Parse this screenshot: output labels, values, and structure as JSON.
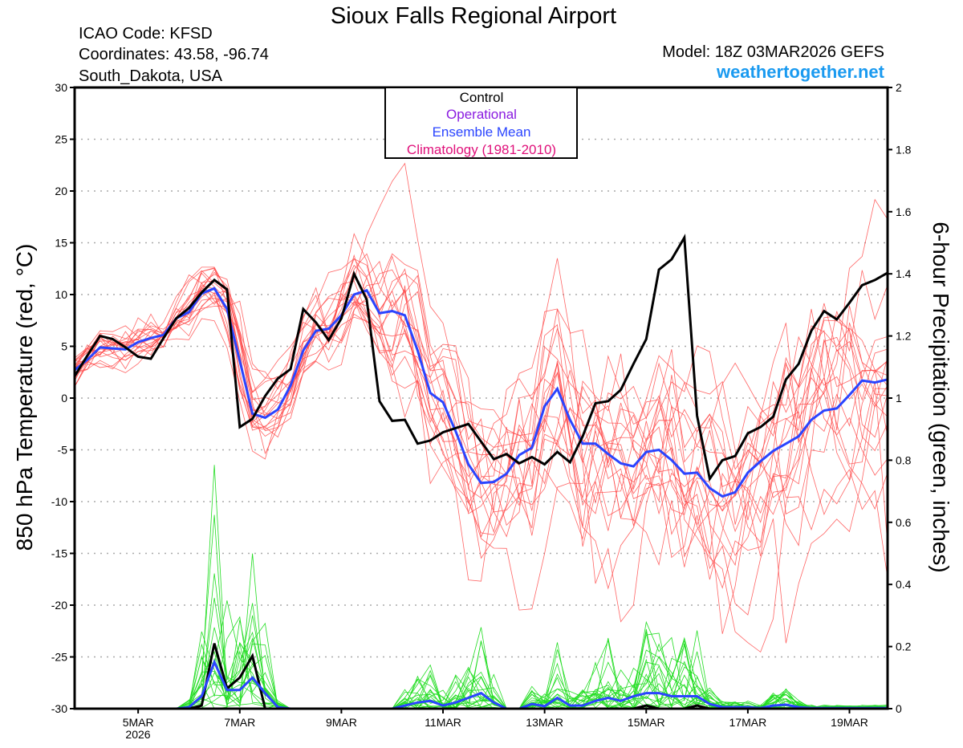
{
  "header": {
    "title": "Sioux Falls Regional Airport",
    "icao": "ICAO Code: KFSD",
    "coordinates": "Coordinates: 43.58, -96.74",
    "region": "South_Dakota, USA",
    "model": "Model: 18Z 03MAR2026 GEFS",
    "site": "weathertogether.net"
  },
  "legend": {
    "control": "Control",
    "operational": "Operational",
    "ensemble_mean": "Ensemble Mean",
    "climatology": "Climatology (1981-2010)"
  },
  "colors": {
    "control": "#000000",
    "operational": "#8a1be0",
    "ensemble_mean": "#2a44ff",
    "climatology": "#e0107a",
    "members_temp": "#ff4a4a",
    "members_precip": "#22dd22",
    "site": "#1a9af0"
  },
  "chart_data": {
    "type": "line",
    "title": "Sioux Falls Regional Airport",
    "ylabel": "850 hPa Temperature (red, °C)",
    "y2label": "6-hour Precipitation (green, inches)",
    "ylim": [
      -30,
      30
    ],
    "y2lim": [
      0,
      2
    ],
    "yticks": [
      "30",
      "25",
      "20",
      "15",
      "10",
      "5",
      "0",
      "-5",
      "-10",
      "-15",
      "-20",
      "-25",
      "-30"
    ],
    "y2ticks": [
      "2",
      "1.8",
      "1.6",
      "1.4",
      "1.2",
      "1",
      "0.8",
      "0.6",
      "0.4",
      "0.2",
      "0"
    ],
    "time_step_hours": 6,
    "start": "18Z 03MAR2026",
    "xticks": [
      {
        "label": "5MAR",
        "index": 5
      },
      {
        "label": "7MAR",
        "index": 13
      },
      {
        "label": "9MAR",
        "index": 21
      },
      {
        "label": "11MAR",
        "index": 29
      },
      {
        "label": "13MAR",
        "index": 37
      },
      {
        "label": "15MAR",
        "index": 45
      },
      {
        "label": "17MAR",
        "index": 53
      },
      {
        "label": "19MAR",
        "index": 61
      }
    ],
    "year_label": "2026",
    "control_temp": [
      2.1,
      4.1,
      6.0,
      5.7,
      4.9,
      4.0,
      3.8,
      5.8,
      7.7,
      8.7,
      10.2,
      11.4,
      10.5,
      -2.8,
      -2.0,
      0.2,
      1.9,
      2.8,
      8.6,
      7.3,
      5.6,
      7.7,
      12.0,
      9.5,
      -0.3,
      -2.2,
      -2.1,
      -4.4,
      -4.1,
      -3.3,
      -2.9,
      -2.5,
      -4.2,
      -5.9,
      -5.4,
      -6.3,
      -5.7,
      -6.4,
      -5.2,
      -6.2,
      -3.7,
      -0.5,
      -0.3,
      0.8,
      3.3,
      5.7,
      12.4,
      13.4,
      15.5,
      -1.7,
      -7.8,
      -6.0,
      -5.6,
      -3.4,
      -2.8,
      -1.8,
      1.8,
      3.3,
      6.5,
      8.4,
      7.6,
      9.2,
      10.9,
      11.4,
      12.1
    ],
    "mean_temp": [
      2.7,
      3.7,
      4.9,
      4.8,
      4.7,
      5.4,
      5.8,
      6.1,
      7.7,
      8.3,
      10.1,
      10.6,
      8.6,
      3.6,
      -1.5,
      -1.9,
      -1.1,
      1.2,
      4.6,
      6.5,
      6.7,
      8.0,
      10.0,
      10.4,
      8.2,
      8.4,
      8.0,
      4.6,
      0.5,
      -0.4,
      -3.2,
      -6.4,
      -8.2,
      -8.1,
      -7.3,
      -5.5,
      -4.8,
      -0.8,
      0.9,
      -2.1,
      -4.4,
      -4.4,
      -5.4,
      -6.3,
      -6.6,
      -5.2,
      -5.0,
      -6.0,
      -7.3,
      -7.2,
      -8.7,
      -9.5,
      -9.1,
      -7.2,
      -6.1,
      -5.1,
      -4.4,
      -3.7,
      -2.1,
      -1.2,
      -1.0,
      0.3,
      1.7,
      1.5,
      1.8
    ],
    "member_temp_spread": [
      0.8,
      0.8,
      0.8,
      0.9,
      0.9,
      1,
      1,
      1,
      1.1,
      1.2,
      1.3,
      1.5,
      2,
      3,
      2.5,
      2,
      2,
      2,
      2,
      2,
      2,
      2.5,
      3,
      3,
      3.5,
      4,
      4.5,
      4.5,
      4.5,
      4.5,
      5,
      5,
      5,
      5,
      5,
      5.5,
      5.5,
      6,
      6,
      6,
      6,
      6,
      6,
      6,
      6,
      6,
      6,
      6.5,
      6.5,
      6.5,
      6.5,
      6.5,
      6.5,
      6.5,
      6.5,
      6.5,
      7,
      7,
      7,
      7,
      7,
      7,
      7,
      7,
      7
    ],
    "control_precip": [
      0,
      0,
      0,
      0,
      0,
      0,
      0,
      0,
      0,
      0,
      0.01,
      0.21,
      0.065,
      0.1,
      0.17,
      0,
      0,
      0,
      0,
      0,
      0,
      0,
      0,
      0,
      0,
      0,
      0,
      0,
      0,
      0,
      0,
      0,
      0,
      0,
      0,
      0,
      0,
      0,
      0,
      0,
      0,
      0,
      0,
      0,
      0,
      0.01,
      0,
      0,
      0,
      0.01,
      0,
      0,
      0,
      0,
      0,
      0,
      0,
      0,
      0,
      0,
      0,
      0,
      0,
      0,
      0
    ],
    "mean_precip": [
      0,
      0,
      0,
      0,
      0,
      0,
      0,
      0,
      0,
      0.005,
      0.04,
      0.15,
      0.06,
      0.06,
      0.1,
      0.05,
      0.005,
      0,
      0,
      0,
      0,
      0,
      0,
      0,
      0,
      0,
      0.01,
      0.02,
      0.025,
      0.01,
      0.02,
      0.035,
      0.05,
      0.02,
      0,
      0,
      0.015,
      0.008,
      0.035,
      0.01,
      0.01,
      0.025,
      0.035,
      0.025,
      0.04,
      0.05,
      0.05,
      0.04,
      0.04,
      0.04,
      0.015,
      0.005,
      0.005,
      0.005,
      0.002,
      0.01,
      0.013,
      0.005,
      0.002,
      0.002,
      0.002,
      0.002,
      0.002,
      0.002,
      0.002
    ],
    "member_count": 20,
    "grid": true,
    "legend_placement": "top-center"
  }
}
